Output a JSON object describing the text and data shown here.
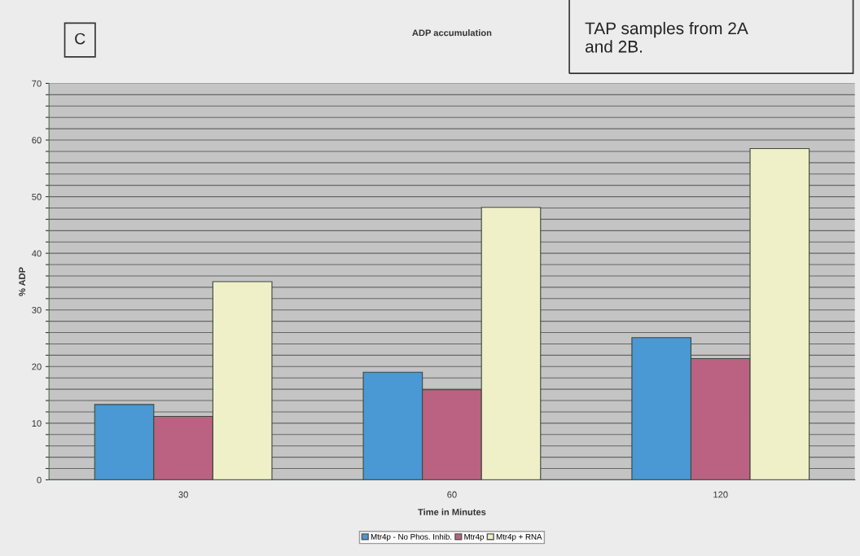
{
  "chart_data": {
    "type": "bar",
    "title": "ADP accumulation",
    "xlabel": "Time in Minutes",
    "ylabel": "% ADP",
    "categories": [
      "30",
      "60",
      "120"
    ],
    "series": [
      {
        "name": "Mtr4p - No Phos. Inhib.",
        "color": "#4a98d4",
        "values": [
          13.3,
          19.0,
          25.1
        ]
      },
      {
        "name": "Mtr4p",
        "color": "#bb6282",
        "values": [
          11.2,
          15.9,
          21.4
        ]
      },
      {
        "name": "Mtr4p + RNA",
        "color": "#f0f0c8",
        "values": [
          35.0,
          48.1,
          58.5
        ]
      }
    ],
    "ylim": [
      0,
      70
    ],
    "yticks": [
      0,
      {
        "value": 2,
        "label": null
      },
      {
        "value": 4,
        "label": null
      },
      {
        "value": 6,
        "label": null
      },
      {
        "value": 8,
        "label": null
      },
      10,
      {
        "value": 12,
        "label": null
      },
      {
        "value": 14,
        "label": null
      },
      {
        "value": 16,
        "label": null
      },
      {
        "value": 18,
        "label": null
      },
      20,
      {
        "value": 22,
        "label": null
      },
      {
        "value": 24,
        "label": null
      },
      {
        "value": 26,
        "label": null
      },
      {
        "value": 28,
        "label": null
      },
      30,
      {
        "value": 32,
        "label": null
      },
      {
        "value": 34,
        "label": null
      },
      {
        "value": 36,
        "label": null
      },
      {
        "value": 38,
        "label": null
      },
      40,
      {
        "value": 42,
        "label": null
      },
      {
        "value": 44,
        "label": null
      },
      {
        "value": 46,
        "label": null
      },
      {
        "value": 48,
        "label": null
      },
      50,
      {
        "value": 52,
        "label": null
      },
      {
        "value": 54,
        "label": null
      },
      {
        "value": 56,
        "label": null
      },
      {
        "value": 58,
        "label": null
      },
      60,
      {
        "value": 62,
        "label": null
      },
      {
        "value": 64,
        "label": null
      },
      {
        "value": 66,
        "label": null
      },
      {
        "value": 68,
        "label": null
      },
      70
    ],
    "grid": "y",
    "legend": "bottom",
    "annotations": [
      "C",
      "TAP samples from 2A\nand 2B."
    ]
  }
}
